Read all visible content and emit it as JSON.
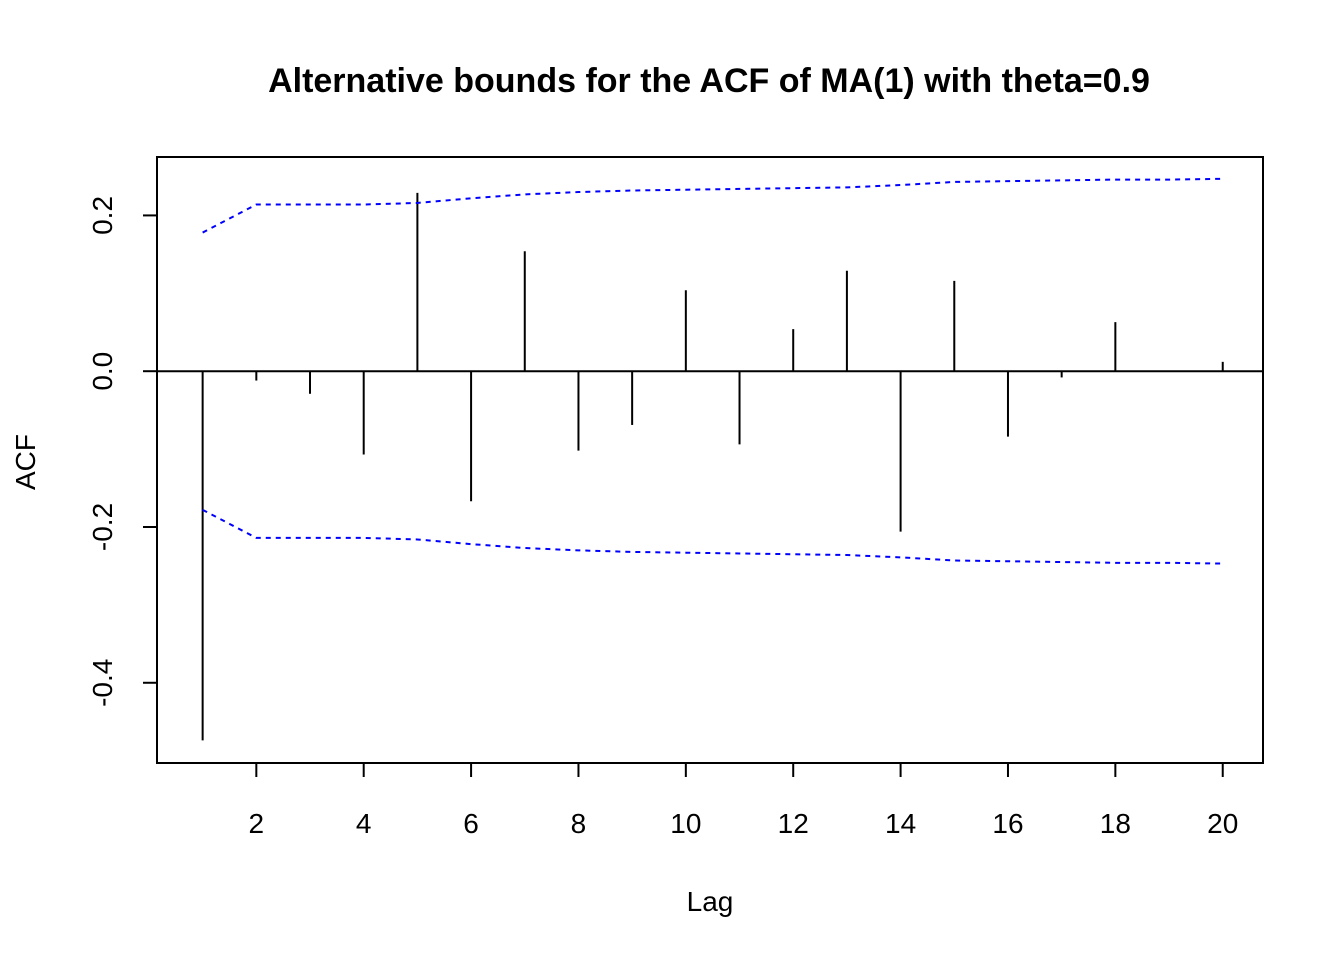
{
  "chart_data": {
    "type": "bar",
    "title": "Alternative bounds for the ACF of MA(1) with theta=0.9",
    "xlabel": "Lag",
    "ylabel": "ACF",
    "xlim": [
      0.15,
      20.75
    ],
    "ylim": [
      -0.503,
      0.275
    ],
    "x_ticks": [
      2,
      4,
      6,
      8,
      10,
      12,
      14,
      16,
      18,
      20
    ],
    "x_tick_labels": [
      "2",
      "4",
      "6",
      "8",
      "10",
      "12",
      "14",
      "16",
      "18",
      "20"
    ],
    "y_ticks": [
      -0.4,
      -0.2,
      0.0,
      0.2
    ],
    "y_tick_labels": [
      "-0.4",
      "-0.2",
      "0.0",
      "0.2"
    ],
    "grid": false,
    "lags": [
      1,
      2,
      3,
      4,
      5,
      6,
      7,
      8,
      9,
      10,
      11,
      12,
      13,
      14,
      15,
      16,
      17,
      18,
      19,
      20
    ],
    "acf": [
      -0.474,
      -0.012,
      -0.029,
      -0.107,
      0.229,
      -0.167,
      0.154,
      -0.102,
      -0.069,
      0.104,
      -0.094,
      0.054,
      0.129,
      -0.206,
      0.116,
      -0.084,
      -0.008,
      0.063,
      0.0,
      0.012
    ],
    "bounds": {
      "color": "#0000ff",
      "style": "dashed",
      "upper": [
        0.178,
        0.214,
        0.214,
        0.214,
        0.216,
        0.222,
        0.227,
        0.23,
        0.232,
        0.233,
        0.234,
        0.235,
        0.236,
        0.239,
        0.243,
        0.244,
        0.245,
        0.246,
        0.246,
        0.247
      ],
      "lower": [
        -0.178,
        -0.214,
        -0.214,
        -0.214,
        -0.216,
        -0.222,
        -0.227,
        -0.23,
        -0.232,
        -0.233,
        -0.234,
        -0.235,
        -0.236,
        -0.239,
        -0.243,
        -0.244,
        -0.245,
        -0.246,
        -0.246,
        -0.247
      ]
    },
    "zero_line": true
  }
}
